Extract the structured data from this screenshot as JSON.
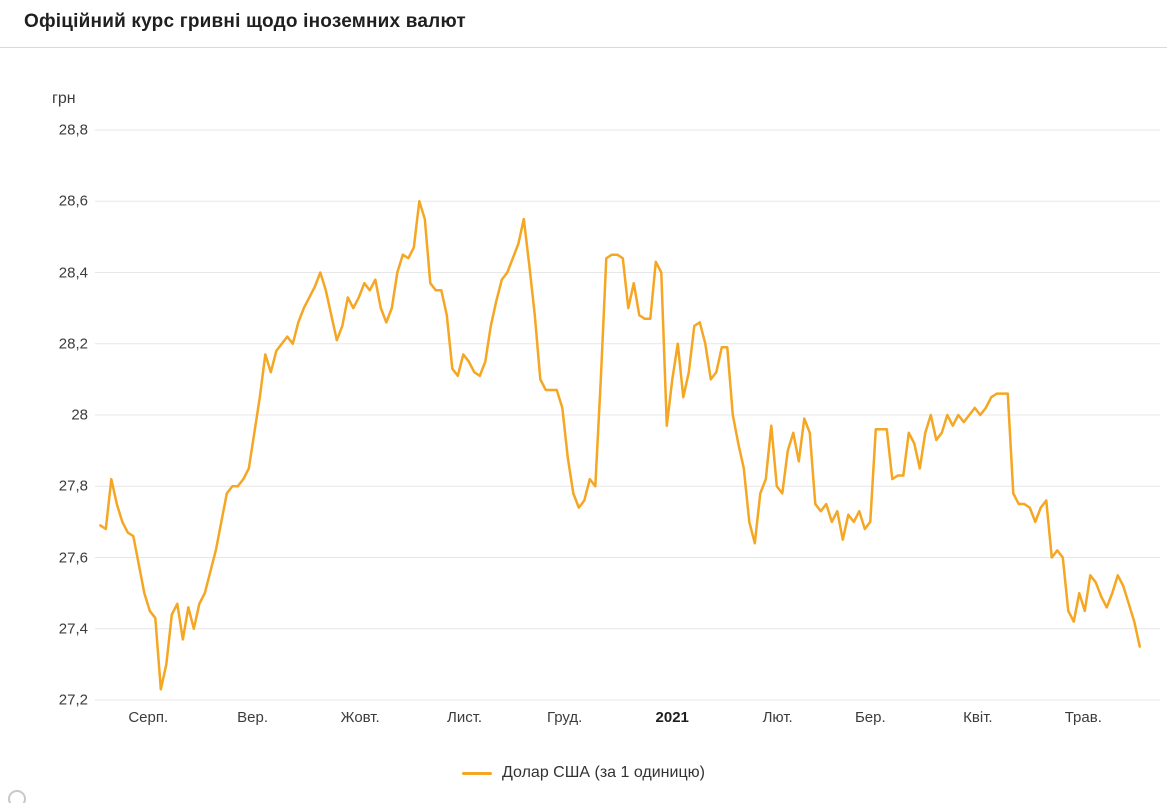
{
  "header": {
    "title": "Офіційний курс гривні щодо іноземних валют"
  },
  "legend": {
    "label": "Долар США (за 1 одиницю)"
  },
  "colors": {
    "line": "#F5A623",
    "grid": "#e7e7e7",
    "tick_text": "#3c3c3c",
    "title_text": "#1f1f1f"
  },
  "chart_data": {
    "type": "line",
    "title": "Офіційний курс гривні щодо іноземних валют",
    "xlabel": "",
    "ylabel": "грн",
    "ylim": [
      27.2,
      28.8
    ],
    "ytick_step": 0.2,
    "ytick_labels": [
      "28,8",
      "28,6",
      "28,4",
      "28,2",
      "28",
      "27,8",
      "27,6",
      "27,4",
      "27,2"
    ],
    "xtick_labels": [
      "Серп.",
      "Вер.",
      "Жовт.",
      "Лист.",
      "Груд.",
      "2021",
      "Лют.",
      "Бер.",
      "Квіт.",
      "Трав."
    ],
    "xtick_positions_pct": [
      5.0,
      14.8,
      24.9,
      34.7,
      44.1,
      54.2,
      64.1,
      72.8,
      82.9,
      92.8
    ],
    "bold_xtick": "2021",
    "grid": true,
    "legend_position": "bottom",
    "x_range_pct": [
      0.5,
      98.1
    ],
    "series": [
      {
        "name": "Долар США (за 1 одиницю)",
        "color": "#F5A623",
        "values": [
          27.69,
          27.68,
          27.82,
          27.75,
          27.7,
          27.67,
          27.66,
          27.58,
          27.5,
          27.45,
          27.43,
          27.23,
          27.3,
          27.44,
          27.47,
          27.37,
          27.46,
          27.4,
          27.47,
          27.5,
          27.56,
          27.62,
          27.7,
          27.78,
          27.8,
          27.8,
          27.82,
          27.85,
          27.95,
          28.05,
          28.17,
          28.12,
          28.18,
          28.2,
          28.22,
          28.2,
          28.26,
          28.3,
          28.33,
          28.36,
          28.4,
          28.35,
          28.28,
          28.21,
          28.25,
          28.33,
          28.3,
          28.33,
          28.37,
          28.35,
          28.38,
          28.3,
          28.26,
          28.3,
          28.4,
          28.45,
          28.44,
          28.47,
          28.6,
          28.55,
          28.37,
          28.35,
          28.35,
          28.28,
          28.13,
          28.11,
          28.17,
          28.15,
          28.12,
          28.11,
          28.15,
          28.25,
          28.32,
          28.38,
          28.4,
          28.44,
          28.48,
          28.55,
          28.42,
          28.28,
          28.1,
          28.07,
          28.07,
          28.07,
          28.02,
          27.88,
          27.78,
          27.74,
          27.76,
          27.82,
          27.8,
          28.1,
          28.44,
          28.45,
          28.45,
          28.44,
          28.3,
          28.37,
          28.28,
          28.27,
          28.27,
          28.43,
          28.4,
          27.97,
          28.1,
          28.2,
          28.05,
          28.12,
          28.25,
          28.26,
          28.2,
          28.1,
          28.12,
          28.19,
          28.19,
          28.0,
          27.92,
          27.85,
          27.7,
          27.64,
          27.78,
          27.82,
          27.97,
          27.8,
          27.78,
          27.9,
          27.95,
          27.87,
          27.99,
          27.95,
          27.75,
          27.73,
          27.75,
          27.7,
          27.73,
          27.65,
          27.72,
          27.7,
          27.73,
          27.68,
          27.7,
          27.96,
          27.96,
          27.96,
          27.82,
          27.83,
          27.83,
          27.95,
          27.92,
          27.85,
          27.95,
          28.0,
          27.93,
          27.95,
          28.0,
          27.97,
          28.0,
          27.98,
          28.0,
          28.02,
          28.0,
          28.02,
          28.05,
          28.06,
          28.06,
          28.06,
          27.78,
          27.75,
          27.75,
          27.74,
          27.7,
          27.74,
          27.76,
          27.6,
          27.62,
          27.6,
          27.45,
          27.42,
          27.5,
          27.45,
          27.55,
          27.53,
          27.49,
          27.46,
          27.5,
          27.55,
          27.52,
          27.47,
          27.42,
          27.35
        ]
      }
    ]
  }
}
